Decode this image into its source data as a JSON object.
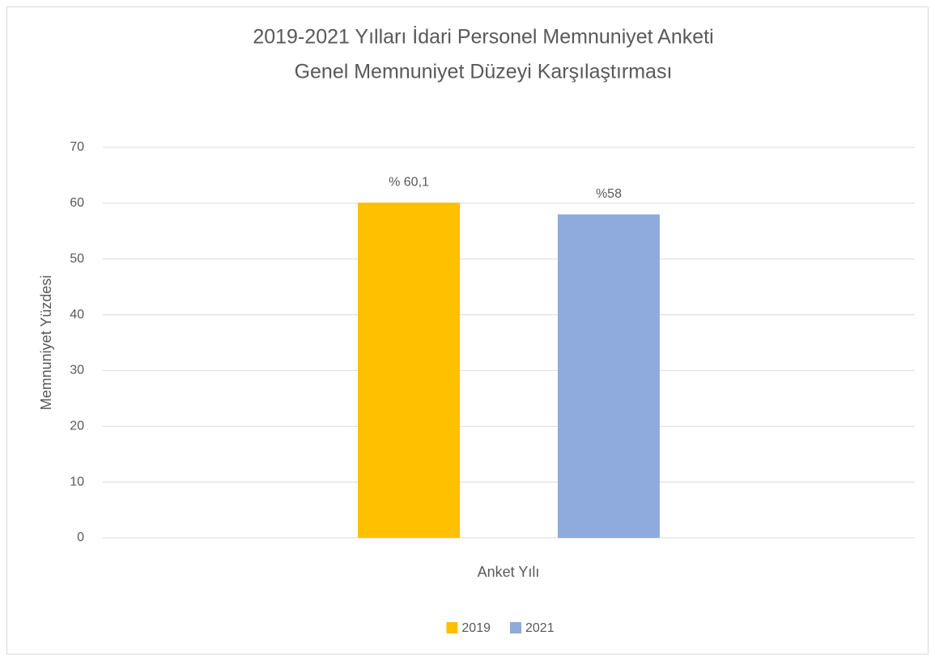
{
  "chart_data": {
    "type": "bar",
    "title": [
      "2019-2021 Yılları İdari Personel Memnuniyet Anketi",
      "Genel Memnuniyet Düzeyi Karşılaştırması"
    ],
    "ylabel": "Memnuniyet Yüzdesi",
    "xlabel": "Anket Yılı",
    "categories": [
      null
    ],
    "series": [
      {
        "name": "2019",
        "color": "#ffc000",
        "values": [
          60.1
        ],
        "value_labels": [
          "% 60,1"
        ]
      },
      {
        "name": "2021",
        "color": "#8faadc",
        "values": [
          58
        ],
        "value_labels": [
          "%58"
        ]
      }
    ],
    "ylim": [
      0,
      70
    ],
    "yticks": [
      0,
      10,
      20,
      30,
      40,
      50,
      60,
      70
    ],
    "grid": true,
    "legend": "bottom"
  }
}
